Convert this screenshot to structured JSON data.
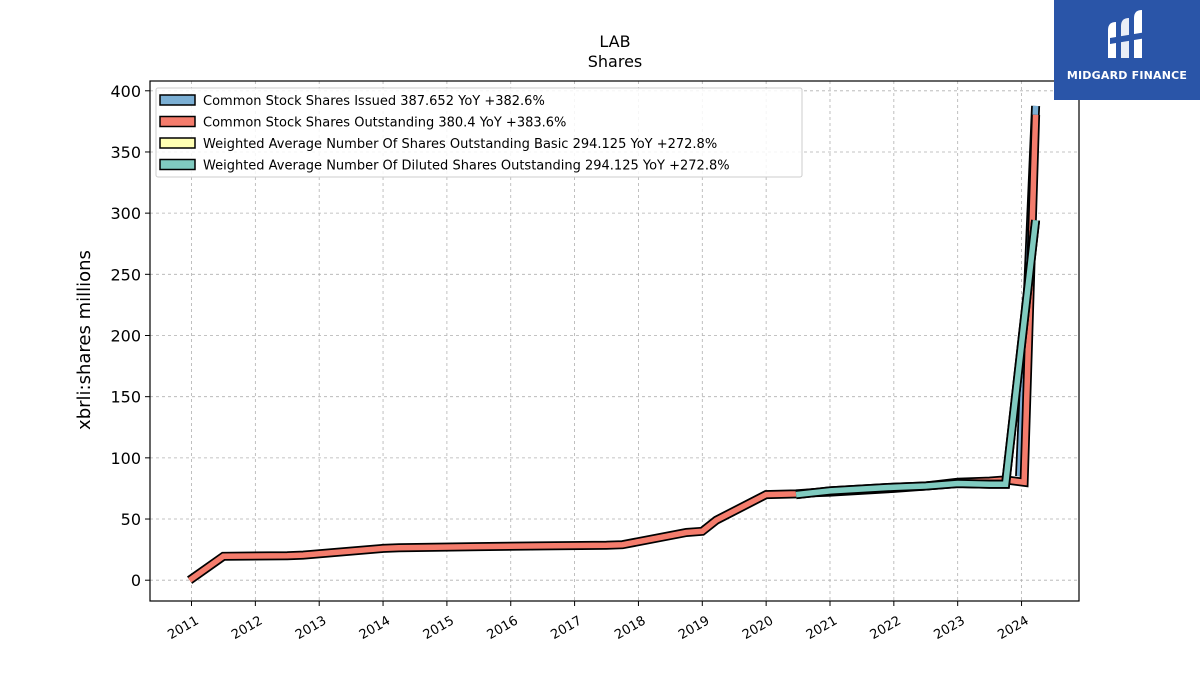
{
  "chart_data": {
    "type": "line",
    "title": "LAB",
    "subtitle": "Shares",
    "xlabel": "",
    "ylabel": "xbrli:shares millions",
    "ylim": [
      -17,
      408
    ],
    "xlim": [
      2010.35,
      2024.9
    ],
    "yticks": [
      0,
      50,
      100,
      150,
      200,
      250,
      300,
      350,
      400
    ],
    "xticks": [
      "2011",
      "2012",
      "2013",
      "2014",
      "2015",
      "2016",
      "2017",
      "2018",
      "2019",
      "2020",
      "2021",
      "2022",
      "2023",
      "2024"
    ],
    "grid": true,
    "legend_position": "top-left",
    "series": [
      {
        "name": "Common Stock Shares Issued  387.652 YoY +382.6%",
        "color": "#7bafd4",
        "x": [
          2023.97,
          2024.22
        ],
        "y": [
          85,
          387.652
        ]
      },
      {
        "name": "Common Stock Shares Outstanding  380.4 YoY +383.6%",
        "color": "#f47c6c",
        "x": [
          2010.97,
          2011.5,
          2012.5,
          2012.75,
          2014,
          2014.25,
          2015.5,
          2016.5,
          2017.5,
          2017.75,
          2018.75,
          2019,
          2019.22,
          2020,
          2020.47,
          2020.72,
          2021,
          2022,
          2022.5,
          2023,
          2023.5,
          2023.75,
          2024.04,
          2024.22
        ],
        "y": [
          0,
          19.5,
          20,
          20.5,
          26,
          26.5,
          27.5,
          28,
          28.5,
          29,
          39,
          40,
          49,
          70,
          70.5,
          71.5,
          72,
          75,
          77,
          80,
          81,
          82,
          80,
          380.4
        ]
      },
      {
        "name": "Weighted Average Number Of Shares Outstanding Basic  294.125 YoY +272.8%",
        "color": "#ffffb3",
        "x": [
          2020.47,
          2021,
          2022,
          2022.5,
          2023,
          2023.5,
          2023.75,
          2024.22
        ],
        "y": [
          70,
          73,
          76,
          77,
          79,
          78.5,
          78.5,
          294.125
        ]
      },
      {
        "name": "Weighted Average Number Of Diluted Shares Outstanding  294.125 YoY +272.8%",
        "color": "#80cbc0",
        "x": [
          2020.47,
          2021,
          2022,
          2022.5,
          2023,
          2023.5,
          2023.75,
          2024.22
        ],
        "y": [
          70,
          73,
          76,
          77,
          79,
          78.5,
          78.5,
          294.125
        ]
      }
    ]
  },
  "logo": {
    "text": "MIDGARD FINANCE",
    "background": "#2a55a8"
  }
}
